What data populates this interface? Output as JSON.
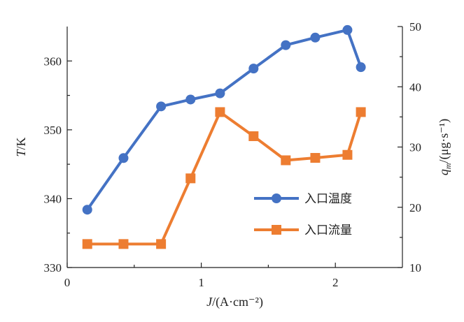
{
  "chart_data": {
    "type": "line",
    "x_axis": {
      "label_var": "J",
      "label_unit": "/(A·cm⁻²)",
      "range": [
        0,
        2.5
      ],
      "ticks": [
        0,
        1,
        2
      ],
      "tick_labels": [
        "0",
        "1",
        "2"
      ]
    },
    "y_left": {
      "label_var": "T",
      "label_unit": "/K",
      "range": [
        330,
        365
      ],
      "ticks": [
        330,
        340,
        350,
        360
      ],
      "tick_labels": [
        "330",
        "340",
        "350",
        "360"
      ]
    },
    "y_right": {
      "label_var": "q",
      "label_sub": "m",
      "label_unit": "/(μg·s⁻¹)",
      "range": [
        10,
        50
      ],
      "ticks": [
        10,
        20,
        30,
        40,
        50
      ],
      "tick_labels": [
        "10",
        "20",
        "30",
        "40",
        "50"
      ]
    },
    "series": [
      {
        "name": "入口温度",
        "axis": "left",
        "marker": "circle",
        "color": "#4472c4",
        "x": [
          0.15,
          0.42,
          0.7,
          0.92,
          1.14,
          1.39,
          1.63,
          1.85,
          2.09,
          2.19
        ],
        "y": [
          338.4,
          345.9,
          353.4,
          354.4,
          355.3,
          358.9,
          362.3,
          363.4,
          364.5,
          359.1
        ]
      },
      {
        "name": "入口流量",
        "axis": "right",
        "marker": "square",
        "color": "#ed7d31",
        "x": [
          0.15,
          0.42,
          0.7,
          0.92,
          1.14,
          1.39,
          1.63,
          1.85,
          2.09,
          2.19
        ],
        "y": [
          13.9,
          13.9,
          13.9,
          24.8,
          35.8,
          31.8,
          27.8,
          28.2,
          28.7,
          35.8
        ]
      }
    ],
    "legend_position": "bottom-right",
    "grid": false
  }
}
